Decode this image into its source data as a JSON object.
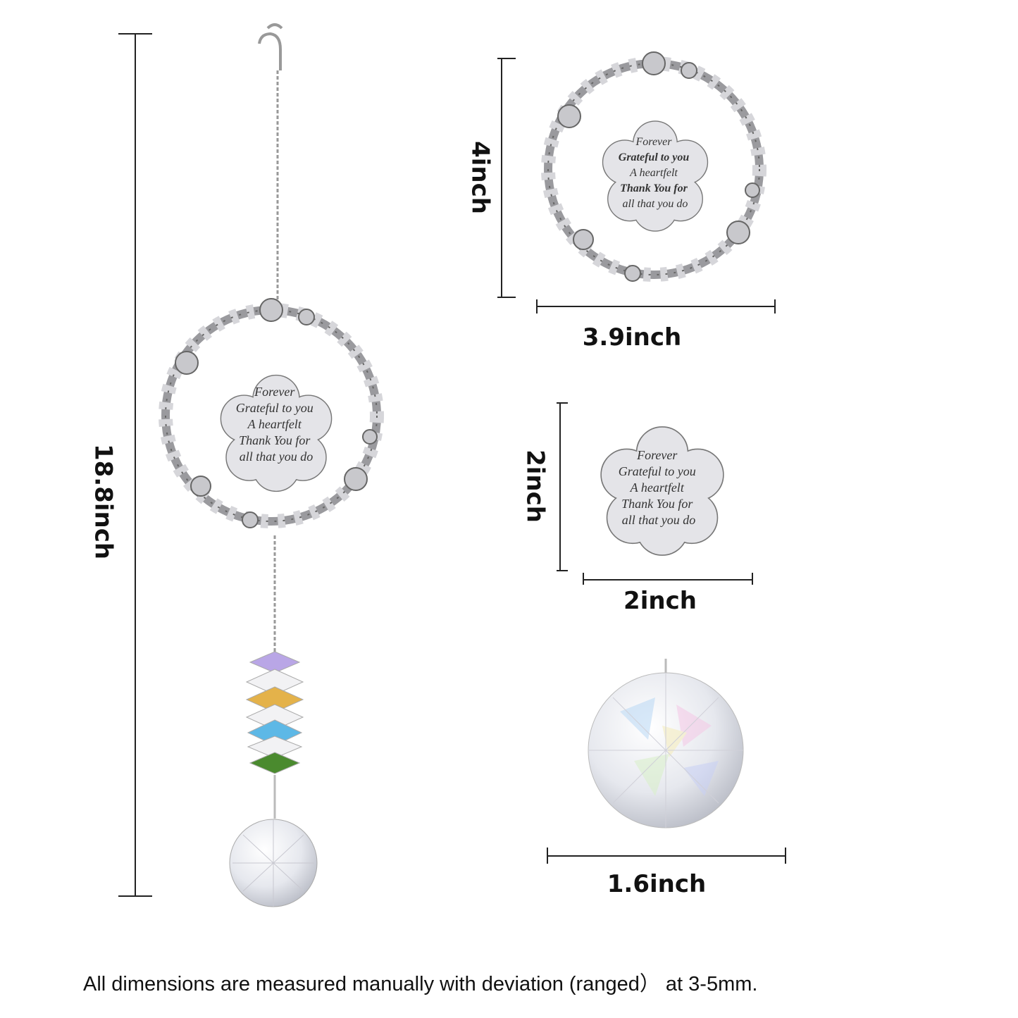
{
  "dimensions": {
    "total_length": "18.8inch",
    "wreath_height": "4inch",
    "wreath_width": "3.9inch",
    "pendant_height": "2inch",
    "pendant_width": "2inch",
    "ball_width": "1.6inch"
  },
  "pendants": [
    {
      "lines": [
        "Forever",
        "Grateful to you",
        "A heartfelt",
        "Thank You for",
        "all that you do"
      ]
    },
    {
      "lines": [
        "Forever",
        "Grateful to you",
        "A heartfelt",
        "Thank You for",
        "all that you do"
      ]
    },
    {
      "lines": [
        "Forever",
        "Grateful to you",
        "A heartfelt",
        "Thank You for",
        "all that you do"
      ]
    }
  ],
  "footnote": "All dimensions are measured manually with deviation (ranged） at 3-5mm."
}
